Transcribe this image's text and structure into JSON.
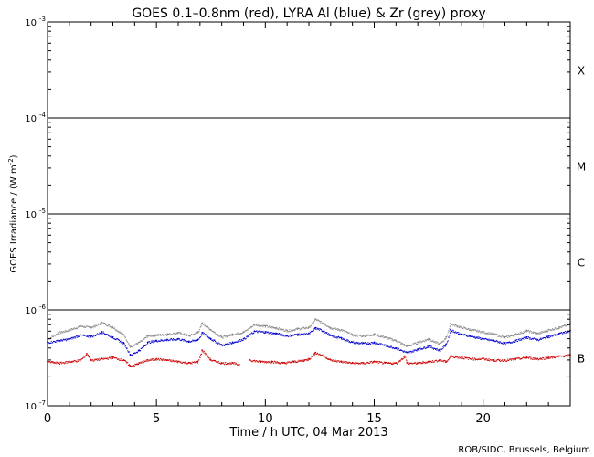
{
  "chart_data": {
    "type": "scatter",
    "title": "GOES 0.1–0.8nm (red), LYRA Al (blue) & Zr (grey) proxy",
    "xlabel": "Time / h UTC, 04 Mar 2013",
    "ylabel_text": "GOES Irradiance / (W m",
    "ylabel_sup": "-2",
    "ylabel_close": ")",
    "credit": "ROB/SIDC, Brussels, Belgium",
    "xlim": [
      0,
      24
    ],
    "ylim": [
      1e-07,
      0.001
    ],
    "yscale": "log",
    "x_ticks": [
      {
        "value": 0,
        "label": "0"
      },
      {
        "value": 5,
        "label": "5"
      },
      {
        "value": 10,
        "label": "10"
      },
      {
        "value": 15,
        "label": "15"
      },
      {
        "value": 20,
        "label": "20"
      }
    ],
    "y_ticks": [
      {
        "value": 1e-07,
        "base": "10",
        "exp": "-7"
      },
      {
        "value": 1e-06,
        "base": "10",
        "exp": "-6"
      },
      {
        "value": 1e-05,
        "base": "10",
        "exp": "-5"
      },
      {
        "value": 0.0001,
        "base": "10",
        "exp": "-4"
      },
      {
        "value": 0.001,
        "base": "10",
        "exp": "-3"
      }
    ],
    "flare_class_lines": [
      1e-06,
      1e-05,
      0.0001
    ],
    "flare_classes": [
      {
        "label": "X",
        "value": 0.000316
      },
      {
        "label": "M",
        "value": 3.16e-05
      },
      {
        "label": "C",
        "value": 3.16e-06
      },
      {
        "label": "B",
        "value": 3.16e-07
      }
    ],
    "series": [
      {
        "color": "#888888",
        "x": [
          0.0,
          0.5,
          1.0,
          1.5,
          2.0,
          2.5,
          3.0,
          3.5,
          3.8,
          4.2,
          4.6,
          5.0,
          5.5,
          6.0,
          6.5,
          6.9,
          7.1,
          7.5,
          8.0,
          8.5,
          9.0,
          9.5,
          10.0,
          10.5,
          11.0,
          11.5,
          12.0,
          12.3,
          12.7,
          13.0,
          13.5,
          14.0,
          14.5,
          15.0,
          15.5,
          16.0,
          16.5,
          17.0,
          17.5,
          18.0,
          18.3,
          18.5,
          19.0,
          19.5,
          20.0,
          20.5,
          21.0,
          21.5,
          22.0,
          22.5,
          23.0,
          23.5,
          24.0
        ],
        "y": [
          5e-07,
          5.8e-07,
          6.2e-07,
          6.8e-07,
          6.6e-07,
          7.4e-07,
          6.6e-07,
          5.5e-07,
          4.1e-07,
          4.6e-07,
          5.4e-07,
          5.5e-07,
          5.6e-07,
          5.8e-07,
          5.4e-07,
          5.9e-07,
          7.3e-07,
          6.2e-07,
          5.2e-07,
          5.6e-07,
          5.9e-07,
          7.1e-07,
          6.8e-07,
          6.5e-07,
          6.1e-07,
          6.4e-07,
          6.6e-07,
          8e-07,
          7.2e-07,
          6.5e-07,
          6.2e-07,
          5.5e-07,
          5.4e-07,
          5.6e-07,
          5.2e-07,
          4.8e-07,
          4.2e-07,
          4.6e-07,
          5e-07,
          4.4e-07,
          5.2e-07,
          7.2e-07,
          6.6e-07,
          6.2e-07,
          5.9e-07,
          5.6e-07,
          5.2e-07,
          5.6e-07,
          6.1e-07,
          5.7e-07,
          6.2e-07,
          6.6e-07,
          7.2e-07
        ]
      },
      {
        "color": "#0000cc",
        "x": [
          0.0,
          0.5,
          1.0,
          1.5,
          2.0,
          2.5,
          3.0,
          3.5,
          3.8,
          4.2,
          4.6,
          5.0,
          5.5,
          6.0,
          6.5,
          6.9,
          7.1,
          7.5,
          8.0,
          8.5,
          9.0,
          9.5,
          10.0,
          10.5,
          11.0,
          11.5,
          12.0,
          12.3,
          12.7,
          13.0,
          13.5,
          14.0,
          14.5,
          15.0,
          15.5,
          16.0,
          16.5,
          17.0,
          17.5,
          18.0,
          18.3,
          18.5,
          19.0,
          19.5,
          20.0,
          20.5,
          21.0,
          21.5,
          22.0,
          22.5,
          23.0,
          23.5,
          24.0
        ],
        "y": [
          4.6e-07,
          4.8e-07,
          5e-07,
          5.5e-07,
          5.3e-07,
          5.9e-07,
          5.2e-07,
          4.5e-07,
          3.4e-07,
          3.8e-07,
          4.6e-07,
          4.8e-07,
          4.9e-07,
          5e-07,
          4.7e-07,
          4.9e-07,
          5.8e-07,
          5e-07,
          4.3e-07,
          4.6e-07,
          5e-07,
          6e-07,
          5.9e-07,
          5.7e-07,
          5.4e-07,
          5.6e-07,
          5.7e-07,
          6.5e-07,
          6e-07,
          5.4e-07,
          5.1e-07,
          4.6e-07,
          4.5e-07,
          4.6e-07,
          4.3e-07,
          4e-07,
          3.6e-07,
          3.9e-07,
          4.2e-07,
          3.8e-07,
          4.4e-07,
          6.2e-07,
          5.6e-07,
          5.3e-07,
          5e-07,
          4.8e-07,
          4.5e-07,
          4.8e-07,
          5.2e-07,
          4.9e-07,
          5.3e-07,
          5.7e-07,
          6.1e-07
        ]
      },
      {
        "color": "#cc0000",
        "x": [
          0.0,
          0.5,
          1.0,
          1.5,
          1.8,
          2.0,
          2.5,
          3.0,
          3.5,
          3.8,
          4.2,
          4.6,
          5.0,
          5.5,
          6.0,
          6.5,
          6.9,
          7.1,
          7.5,
          8.0,
          8.5,
          8.8,
          9.3,
          9.8,
          10.3,
          10.8,
          11.3,
          11.8,
          12.0,
          12.3,
          12.7,
          13.0,
          13.5,
          14.0,
          14.5,
          15.0,
          15.5,
          16.0,
          16.4,
          16.5,
          17.0,
          17.5,
          18.0,
          18.3,
          18.5,
          19.0,
          19.5,
          20.0,
          20.5,
          21.0,
          21.5,
          22.0,
          22.5,
          23.0,
          23.5,
          24.0
        ],
        "y": [
          2.9e-07,
          2.8e-07,
          2.9e-07,
          3e-07,
          3.5e-07,
          3e-07,
          3.1e-07,
          3.2e-07,
          3e-07,
          2.6e-07,
          2.8e-07,
          3e-07,
          3.1e-07,
          3e-07,
          2.9e-07,
          2.8e-07,
          2.9e-07,
          3.8e-07,
          3e-07,
          2.8e-07,
          2.8e-07,
          2.7e-07,
          3e-07,
          2.9e-07,
          2.9e-07,
          2.8e-07,
          2.9e-07,
          3e-07,
          3.1e-07,
          3.6e-07,
          3.3e-07,
          3e-07,
          2.9e-07,
          2.8e-07,
          2.8e-07,
          2.9e-07,
          2.8e-07,
          2.8e-07,
          3.3e-07,
          2.8e-07,
          2.8e-07,
          2.9e-07,
          3e-07,
          2.9e-07,
          3.3e-07,
          3.2e-07,
          3.1e-07,
          3.1e-07,
          3e-07,
          3e-07,
          3.1e-07,
          3.2e-07,
          3.1e-07,
          3.2e-07,
          3.3e-07,
          3.4e-07
        ]
      }
    ]
  }
}
